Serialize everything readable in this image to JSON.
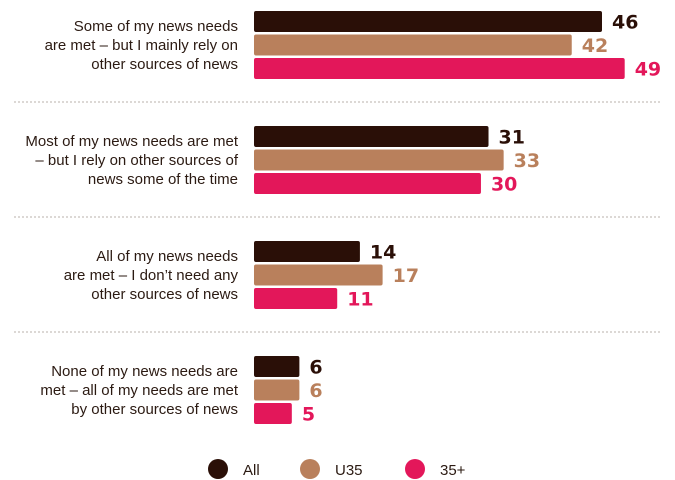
{
  "chart_data": {
    "type": "bar",
    "orientation": "horizontal",
    "categories": [
      [
        "Some of my news needs",
        "are met – but I mainly rely on",
        "other sources of news"
      ],
      [
        "Most of my news needs are met",
        "– but I rely on other sources of",
        "news some of the time"
      ],
      [
        "All of my news needs",
        "are met – I don’t need any",
        "other sources of news"
      ],
      [
        "None of my news needs are",
        "met – all of my needs are met",
        "by other sources of news"
      ]
    ],
    "series": [
      {
        "name": "All",
        "color": "#2a0f07",
        "values": [
          46,
          31,
          14,
          6
        ]
      },
      {
        "name": "U35",
        "color": "#b9805c",
        "values": [
          42,
          33,
          17,
          6
        ]
      },
      {
        "name": "35+",
        "color": "#e3175a",
        "values": [
          49,
          30,
          11,
          5
        ]
      }
    ],
    "xlim": [
      0,
      100
    ],
    "grid": false,
    "legend_position": "bottom"
  }
}
